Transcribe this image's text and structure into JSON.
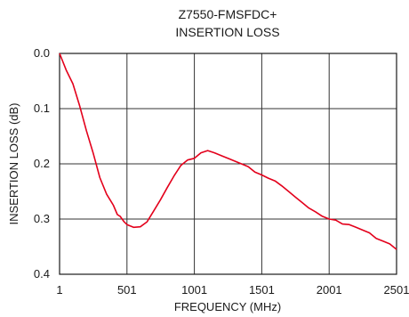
{
  "chart_data": {
    "type": "line",
    "title": "Z7550-FMSFDC+",
    "subtitle": "INSERTION LOSS",
    "xlabel": "FREQUENCY (MHz)",
    "ylabel": "INSERTION LOSS (dB)",
    "xlim": [
      1,
      2501
    ],
    "ylim": [
      0.4,
      0.0
    ],
    "y_inverted": true,
    "x_ticks": [
      1,
      501,
      1001,
      1501,
      2001,
      2501
    ],
    "x_tick_labels": [
      "1",
      "501",
      "1001",
      "1501",
      "2001",
      "2501"
    ],
    "y_ticks": [
      0.0,
      0.1,
      0.2,
      0.3,
      0.4
    ],
    "y_tick_labels": [
      "0.0",
      "0.1",
      "0.2",
      "0.3",
      "0.4"
    ],
    "grid": true,
    "legend": "none",
    "series": [
      {
        "color": "#e3001b",
        "x": [
          1,
          50,
          100,
          150,
          200,
          250,
          300,
          350,
          400,
          430,
          450,
          480,
          501,
          550,
          600,
          650,
          700,
          750,
          800,
          850,
          900,
          950,
          1001,
          1050,
          1100,
          1150,
          1200,
          1250,
          1300,
          1350,
          1400,
          1450,
          1500,
          1550,
          1600,
          1650,
          1700,
          1750,
          1800,
          1850,
          1900,
          1950,
          2001,
          2050,
          2100,
          2150,
          2200,
          2250,
          2300,
          2350,
          2400,
          2450,
          2501
        ],
        "y": [
          0.0,
          0.03,
          0.055,
          0.095,
          0.14,
          0.18,
          0.225,
          0.255,
          0.275,
          0.292,
          0.295,
          0.305,
          0.31,
          0.315,
          0.314,
          0.305,
          0.285,
          0.265,
          0.243,
          0.222,
          0.203,
          0.193,
          0.19,
          0.18,
          0.176,
          0.18,
          0.185,
          0.19,
          0.195,
          0.2,
          0.205,
          0.215,
          0.22,
          0.226,
          0.231,
          0.24,
          0.25,
          0.26,
          0.27,
          0.28,
          0.287,
          0.295,
          0.3,
          0.302,
          0.309,
          0.31,
          0.315,
          0.32,
          0.325,
          0.335,
          0.34,
          0.345,
          0.355
        ]
      }
    ]
  }
}
